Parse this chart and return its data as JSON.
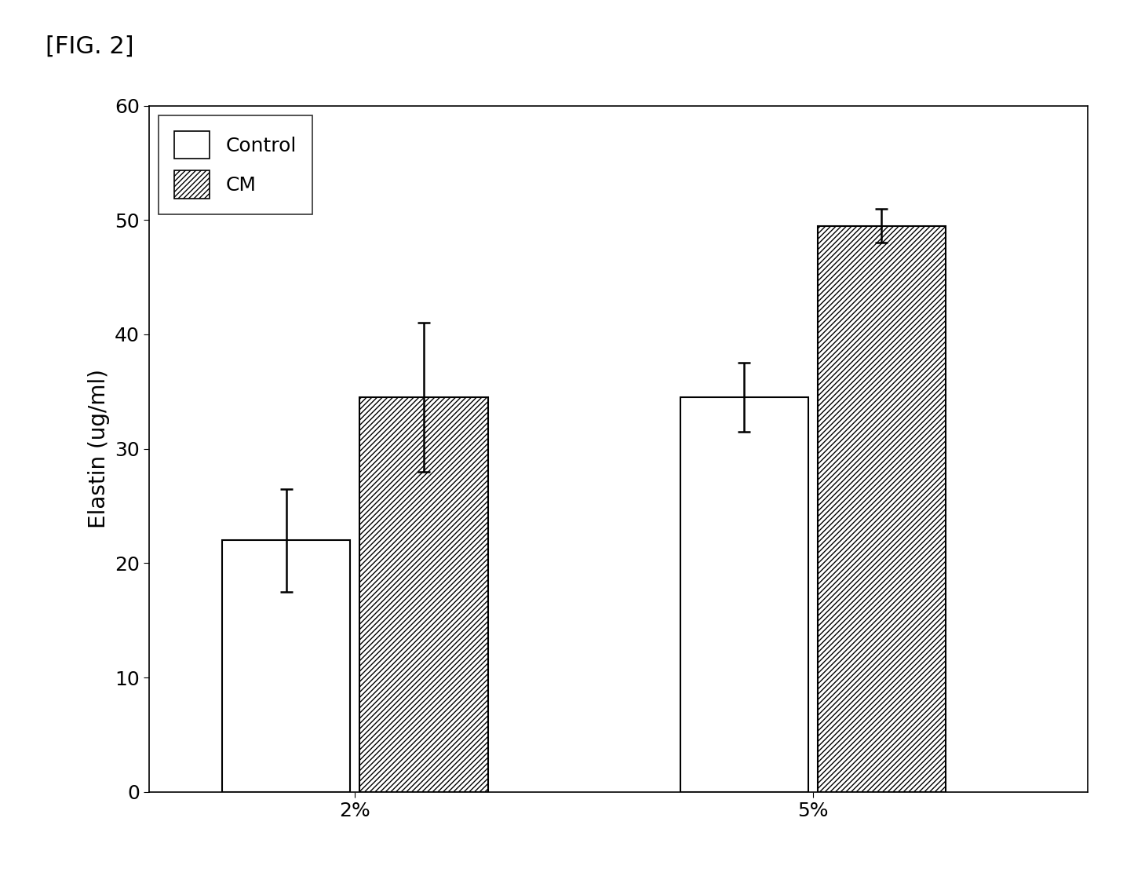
{
  "title": "[FIG. 2]",
  "ylabel": "Elastin (ug/ml)",
  "xlabel": "",
  "categories": [
    "2%",
    "5%"
  ],
  "control_values": [
    22.0,
    34.5
  ],
  "cm_values": [
    34.5,
    49.5
  ],
  "control_errors": [
    4.5,
    3.0
  ],
  "cm_errors": [
    6.5,
    1.5
  ],
  "ylim": [
    0,
    60
  ],
  "yticks": [
    0,
    10,
    20,
    30,
    40,
    50,
    60
  ],
  "bar_width": 0.28,
  "control_color": "#ffffff",
  "control_edgecolor": "#000000",
  "cm_edgecolor": "#000000",
  "background_color": "#ffffff",
  "title_fontsize": 22,
  "label_fontsize": 20,
  "tick_fontsize": 18,
  "legend_fontsize": 18,
  "figsize": [
    14.59,
    11.21
  ],
  "dpi": 100,
  "group_centers": [
    0.5,
    1.5
  ],
  "xlim": [
    0.05,
    2.1
  ]
}
